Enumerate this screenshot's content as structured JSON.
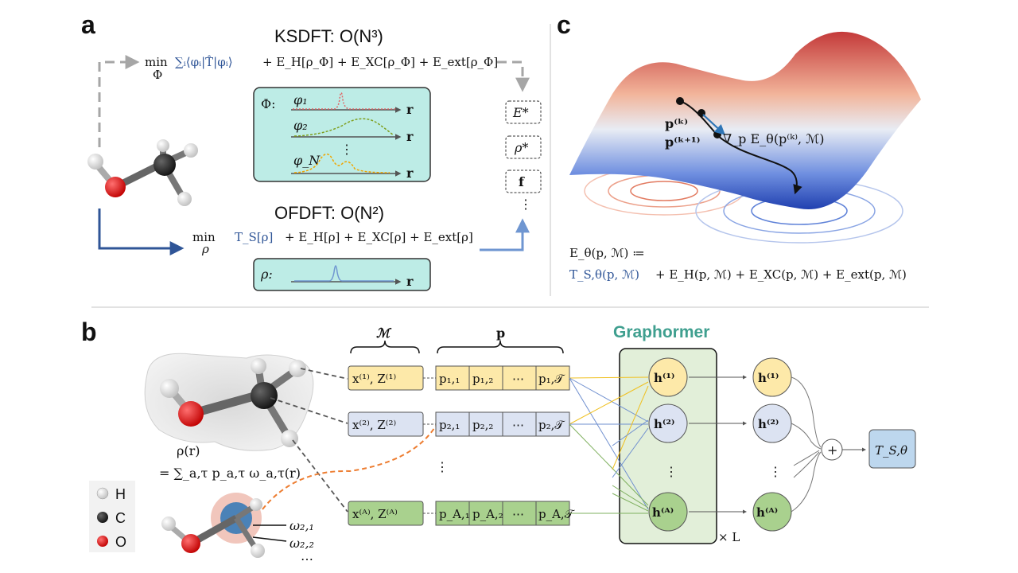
{
  "panels": {
    "a": "a",
    "b": "b",
    "c": "c"
  },
  "panel_a": {
    "ksdft_title": "KSDFT:  O(N³)",
    "ksdft_min": "min",
    "ksdft_min_sub": "Φ",
    "ksdft_blue": "∑ᵢ⟨φᵢ|T̂|φᵢ⟩",
    "ksdft_rest": "+ E_H[ρ_Φ] + E_XC[ρ_Φ] + E_ext[ρ_Φ]",
    "orbital_box_label": "Φ:",
    "orbitals": [
      "φ₁",
      "φ₂",
      "⋮",
      "φ_N"
    ],
    "axis_r": "r",
    "ofdft_title": "OFDFT:  O(N²)",
    "ofdft_min": "min",
    "ofdft_min_sub": "ρ",
    "ofdft_blue": "T_S[ρ]",
    "ofdft_rest": "+ E_H[ρ] + E_XC[ρ] + E_ext[ρ]",
    "density_box_label": "ρ:",
    "outputs": [
      "E*",
      "ρ*",
      "f",
      "⋮"
    ]
  },
  "panel_c": {
    "p_k": "p⁽ᵏ⁾",
    "p_k1": "p⁽ᵏ⁺¹⁾",
    "gradient": "∇_p E_θ(p⁽ᵏ⁾, ℳ)",
    "energy_def": "E_θ(p, ℳ) ≔",
    "energy_blue": "T_S,θ(p, ℳ)",
    "energy_rest": "+ E_H(p, ℳ) + E_XC(p, ℳ) + E_ext(p, ℳ)"
  },
  "panel_b": {
    "density_label": "ρ(r)",
    "density_expansion": "= ∑_a,τ p_a,τ ω_a,τ(r)",
    "omega_labels": [
      "ω₂,₁",
      "ω₂,₂",
      "⋯"
    ],
    "legend": [
      {
        "symbol": "H",
        "color": "#f2f2f2"
      },
      {
        "symbol": "C",
        "color": "#222222"
      },
      {
        "symbol": "O",
        "color": "#e02020"
      }
    ],
    "brace_M": "ℳ",
    "brace_p": "p",
    "atom_rows": [
      {
        "m": "x⁽¹⁾, Z⁽¹⁾",
        "p": [
          "p₁,₁",
          "p₁,₂",
          "⋯",
          "p₁,𝒯"
        ],
        "fill": "#fde9a9",
        "stroke": "#c9a227"
      },
      {
        "m": "x⁽²⁾, Z⁽²⁾",
        "p": [
          "p₂,₁",
          "p₂,₂",
          "⋯",
          "p₂,𝒯"
        ],
        "fill": "#dce3f2",
        "stroke": "#7f8fb8"
      },
      {
        "m": "x⁽ᴬ⁾, Z⁽ᴬ⁾",
        "p": [
          "p_A,₁",
          "p_A,₂",
          "⋯",
          "p_A,𝒯"
        ],
        "fill": "#a9d18e",
        "stroke": "#5e8f3d"
      }
    ],
    "row_ellipsis": "⋮",
    "graphormer_title": "Graphormer",
    "hidden_nodes": [
      "h⁽¹⁾",
      "h⁽²⁾",
      "⋮",
      "h⁽ᴬ⁾"
    ],
    "layers": "× L",
    "sum_symbol": "+",
    "output": "T_S,θ"
  },
  "colors": {
    "ks_dash": "#a6a6a6",
    "of_blue": "#2f5597",
    "teal_box": "#bdece6",
    "green_box": "#e2efd9",
    "output_blue": "#bdd7ee"
  }
}
